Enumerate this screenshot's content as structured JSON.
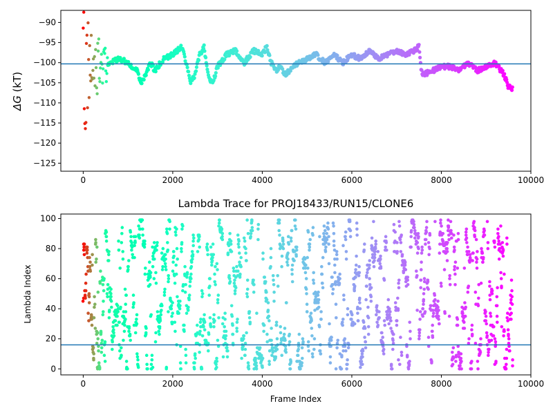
{
  "chart_data": [
    {
      "type": "scatter",
      "title": "",
      "xlabel": "",
      "ylabel": "ΔG (kT)",
      "ylabel_symbol": "ΔG",
      "ylabel_unit": " (kT)",
      "xlim": [
        -500,
        10000
      ],
      "ylim": [
        -127,
        -87
      ],
      "xticks": [
        0,
        2000,
        4000,
        6000,
        8000,
        10000
      ],
      "yticks": [
        -90,
        -95,
        -100,
        -105,
        -110,
        -115,
        -120,
        -125
      ],
      "grid": false,
      "colormap": "rainbow, early frames red to late frames violet",
      "hline": {
        "y": -100.3,
        "color": "#1f77b4"
      },
      "n_frames": 9600,
      "trace_anchors": {
        "x": [
          0,
          50,
          100,
          150,
          200,
          300,
          400,
          500,
          600,
          800,
          1000,
          1200,
          1300,
          1400,
          1500,
          1600,
          1800,
          2000,
          2100,
          2200,
          2300,
          2400,
          2500,
          2600,
          2700,
          2800,
          2900,
          3000,
          3200,
          3400,
          3600,
          3800,
          4000,
          4100,
          4200,
          4300,
          4400,
          4500,
          4600,
          4800,
          5000,
          5200,
          5400,
          5600,
          5800,
          6000,
          6200,
          6400,
          6500,
          6600,
          6800,
          7000,
          7200,
          7400,
          7500,
          7550,
          7600,
          7800,
          8000,
          8200,
          8400,
          8600,
          8800,
          9000,
          9200,
          9400,
          9500,
          9600
        ],
        "y": [
          -100,
          -105,
          -98,
          -101,
          -96,
          -100,
          -99,
          -101,
          -100,
          -99,
          -100,
          -102,
          -105,
          -103,
          -100,
          -102,
          -99,
          -98,
          -97,
          -96,
          -100,
          -105,
          -103,
          -98,
          -96,
          -104,
          -105,
          -101,
          -98,
          -97,
          -100,
          -97,
          -98,
          -96,
          -100,
          -102,
          -101,
          -103,
          -102,
          -100,
          -99,
          -98,
          -100,
          -98,
          -100,
          -98,
          -99,
          -97,
          -98,
          -99,
          -98,
          -97,
          -98,
          -97,
          -96,
          -102,
          -103,
          -102,
          -101,
          -101,
          -102,
          -100,
          -102,
          -101,
          -100,
          -103,
          -106,
          -106.5
        ]
      }
    },
    {
      "type": "scatter",
      "title": "Lambda Trace for PROJ18433/RUN15/CLONE6",
      "xlabel": "Frame Index",
      "ylabel": "Lambda Index",
      "xlim": [
        -500,
        10000
      ],
      "ylim": [
        -4,
        103
      ],
      "xticks": [
        0,
        2000,
        4000,
        6000,
        8000,
        10000
      ],
      "yticks": [
        0,
        20,
        40,
        60,
        80,
        100
      ],
      "grid": false,
      "colormap": "rainbow, early frames red to late frames violet",
      "hline": {
        "y": 16,
        "color": "#1f77b4"
      },
      "n_frames": 9600,
      "lambda_range": [
        0,
        99
      ]
    }
  ]
}
